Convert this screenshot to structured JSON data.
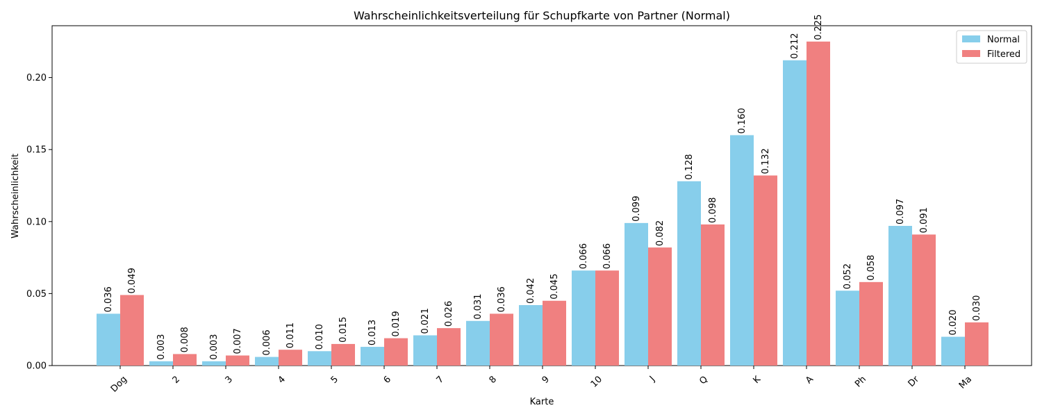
{
  "chart_data": {
    "type": "bar",
    "title": "Wahrscheinlichkeitsverteilung für Schupfkarte von Partner (Normal)",
    "xlabel": "Karte",
    "ylabel": "Wahrscheinlichkeit",
    "categories": [
      "Dog",
      "2",
      "3",
      "4",
      "5",
      "6",
      "7",
      "8",
      "9",
      "10",
      "J",
      "Q",
      "K",
      "A",
      "Ph",
      "Dr",
      "Ma"
    ],
    "series": [
      {
        "name": "Normal",
        "color": "#87ceeb",
        "values": [
          0.036,
          0.003,
          0.003,
          0.006,
          0.01,
          0.013,
          0.021,
          0.031,
          0.042,
          0.066,
          0.099,
          0.128,
          0.16,
          0.212,
          0.052,
          0.097,
          0.02
        ],
        "labels": [
          "0.036",
          "0.003",
          "0.003",
          "0.006",
          "0.010",
          "0.013",
          "0.021",
          "0.031",
          "0.042",
          "0.066",
          "0.099",
          "0.128",
          "0.160",
          "0.212",
          "0.052",
          "0.097",
          "0.020"
        ]
      },
      {
        "name": "Filtered",
        "color": "#f08080",
        "values": [
          0.049,
          0.008,
          0.007,
          0.011,
          0.015,
          0.019,
          0.026,
          0.036,
          0.045,
          0.066,
          0.082,
          0.098,
          0.132,
          0.225,
          0.058,
          0.091,
          0.03
        ],
        "labels": [
          "0.049",
          "0.008",
          "0.007",
          "0.011",
          "0.015",
          "0.019",
          "0.026",
          "0.036",
          "0.045",
          "0.066",
          "0.082",
          "0.098",
          "0.132",
          "0.225",
          "0.058",
          "0.091",
          "0.030"
        ]
      }
    ],
    "ylim": [
      0,
      0.236
    ],
    "yticks": [
      0.0,
      0.05,
      0.1,
      0.15,
      0.2
    ],
    "ytick_labels": [
      "0.00",
      "0.05",
      "0.10",
      "0.15",
      "0.20"
    ],
    "grid": false,
    "legend_position": "top-right"
  }
}
